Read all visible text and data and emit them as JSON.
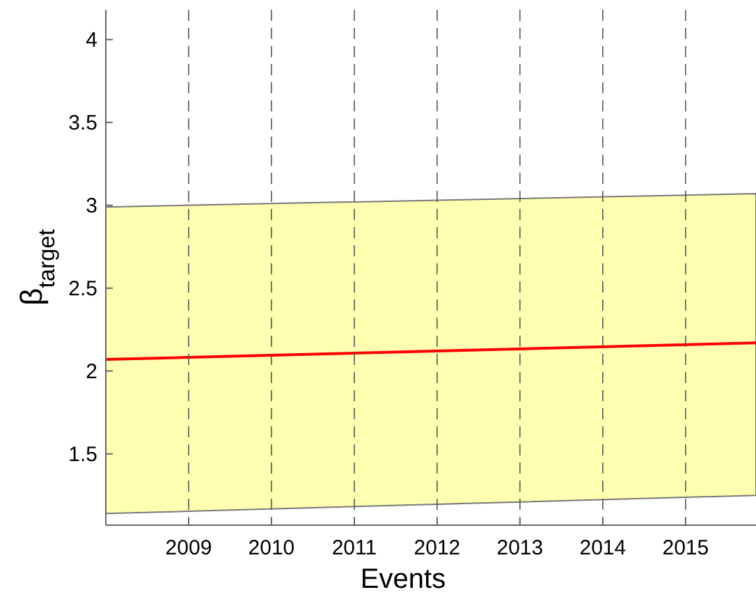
{
  "chart_data": {
    "type": "line",
    "xlabel": "Events",
    "ylabel": "β$_{target}$",
    "x": [
      2008,
      2015.85
    ],
    "series": [
      {
        "color": "#ff0000",
        "values": [
          2.07,
          2.17
        ],
        "lower": [
          1.14,
          1.25
        ],
        "upper": [
          2.99,
          3.07
        ]
      }
    ],
    "xlim": [
      2008,
      2015.85
    ],
    "xticks": [
      2009,
      2010,
      2011,
      2012,
      2013,
      2014,
      2015
    ],
    "ylim": [
      1.07,
      4.18
    ],
    "yticks": [
      1.5,
      2,
      2.5,
      3,
      3.5,
      4
    ],
    "grid": "x",
    "line_style": "solid",
    "marker": "none"
  }
}
